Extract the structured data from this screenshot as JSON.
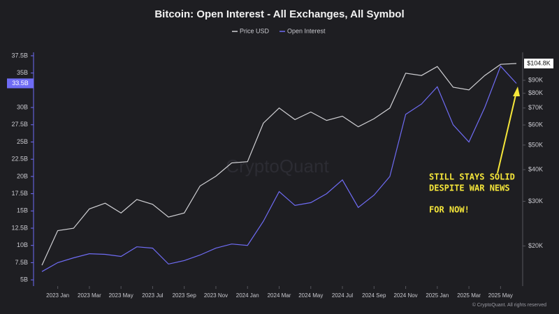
{
  "chart_data": {
    "type": "line",
    "title": "Bitcoin: Open Interest - All Exchanges, All Symbol",
    "watermark": "CryptoQuant",
    "footer": "© CryptoQuant. All rights reserved",
    "annotation": [
      "STILL STAYS SOLID",
      "DESPITE WAR NEWS",
      "FOR NOW!"
    ],
    "legend": "top",
    "x": [
      "2022-12",
      "2023-01",
      "2023-02",
      "2023-03",
      "2023-04",
      "2023-05",
      "2023-06",
      "2023-07",
      "2023-08",
      "2023-09",
      "2023-10",
      "2023-11",
      "2023-12",
      "2024-01",
      "2024-02",
      "2024-03",
      "2024-04",
      "2024-05",
      "2024-06",
      "2024-07",
      "2024-08",
      "2024-09",
      "2024-10",
      "2024-11",
      "2024-12",
      "2025-01",
      "2025-02",
      "2025-03",
      "2025-04",
      "2025-05",
      "2025-06"
    ],
    "xlim": [
      "2022-12",
      "2025-06"
    ],
    "xticks": [
      {
        "value": "2023-01",
        "label": "2023 Jan"
      },
      {
        "value": "2023-03",
        "label": "2023 Mar"
      },
      {
        "value": "2023-05",
        "label": "2023 May"
      },
      {
        "value": "2023-07",
        "label": "2023 Jul"
      },
      {
        "value": "2023-09",
        "label": "2023 Sep"
      },
      {
        "value": "2023-11",
        "label": "2023 Nov"
      },
      {
        "value": "2024-01",
        "label": "2024 Jan"
      },
      {
        "value": "2024-03",
        "label": "2024 Mar"
      },
      {
        "value": "2024-05",
        "label": "2024 May"
      },
      {
        "value": "2024-07",
        "label": "2024 Jul"
      },
      {
        "value": "2024-09",
        "label": "2024 Sep"
      },
      {
        "value": "2024-11",
        "label": "2024 Nov"
      },
      {
        "value": "2025-01",
        "label": "2025 Jan"
      },
      {
        "value": "2025-03",
        "label": "2025 Mar"
      },
      {
        "value": "2025-05",
        "label": "2025 May"
      }
    ],
    "ylim": [
      4.1,
      38
    ],
    "yticks": [
      {
        "value": 5,
        "label": "5B"
      },
      {
        "value": 7.5,
        "label": "7.5B"
      },
      {
        "value": 10,
        "label": "10B"
      },
      {
        "value": 12.5,
        "label": "12.5B"
      },
      {
        "value": 15,
        "label": "15B"
      },
      {
        "value": 17.5,
        "label": "17.5B"
      },
      {
        "value": 20,
        "label": "20B"
      },
      {
        "value": 22.5,
        "label": "22.5B"
      },
      {
        "value": 25,
        "label": "25B"
      },
      {
        "value": 27.5,
        "label": "27.5B"
      },
      {
        "value": 30,
        "label": "30B"
      },
      {
        "value": 35,
        "label": "35B"
      },
      {
        "value": 37.5,
        "label": "37.5B"
      }
    ],
    "y2lim": [
      13900,
      116000
    ],
    "y2log": true,
    "y2ticks": [
      {
        "value": 20000,
        "label": "$20K"
      },
      {
        "value": 30000,
        "label": "$30K"
      },
      {
        "value": 40000,
        "label": "$40K"
      },
      {
        "value": 50000,
        "label": "$50K"
      },
      {
        "value": 60000,
        "label": "$60K"
      },
      {
        "value": 70000,
        "label": "$70K"
      },
      {
        "value": 80000,
        "label": "$80K"
      },
      {
        "value": 90000,
        "label": "$90K"
      }
    ],
    "series": [
      {
        "name": "Price USD",
        "color": "#d0d0d4",
        "axis": "y2",
        "values": [
          16800,
          23000,
          23500,
          28000,
          29500,
          27000,
          30500,
          29200,
          26000,
          27000,
          34500,
          37700,
          42500,
          43000,
          61000,
          70000,
          63000,
          67500,
          62500,
          65000,
          59000,
          63500,
          70000,
          96000,
          94000,
          102000,
          84500,
          82500,
          94000,
          104000,
          104800
        ],
        "value_labels": [
          null,
          null,
          null,
          null,
          null,
          null,
          null,
          null,
          null,
          null,
          null,
          null,
          null,
          null,
          null,
          null,
          null,
          null,
          null,
          null,
          null,
          null,
          null,
          null,
          null,
          null,
          null,
          null,
          null,
          null,
          "$104.8K"
        ]
      },
      {
        "name": "Open Interest",
        "color": "#6f6cf5",
        "values": [
          6.2,
          7.5,
          8.2,
          8.8,
          8.7,
          8.4,
          9.8,
          9.6,
          7.3,
          7.8,
          8.6,
          9.6,
          10.2,
          10.0,
          13.5,
          17.8,
          15.8,
          16.2,
          17.5,
          19.5,
          15.5,
          17.3,
          20.0,
          29.0,
          30.5,
          33.0,
          27.5,
          25.0,
          30.0,
          36.0,
          33.5
        ],
        "value_labels": [
          null,
          null,
          null,
          null,
          null,
          null,
          null,
          null,
          null,
          null,
          null,
          null,
          null,
          null,
          null,
          null,
          null,
          null,
          null,
          null,
          null,
          null,
          null,
          null,
          null,
          null,
          null,
          null,
          null,
          null,
          "33.5B"
        ]
      }
    ]
  }
}
